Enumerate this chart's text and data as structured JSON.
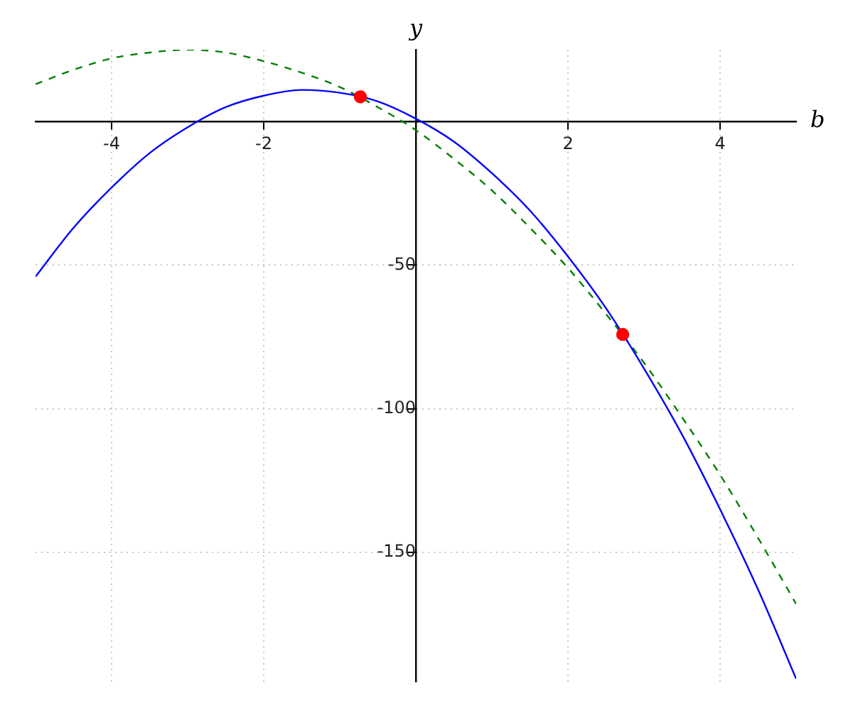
{
  "chart_data": {
    "type": "line",
    "xlabel": "b",
    "ylabel": "y",
    "xlim": [
      -5,
      5
    ],
    "ylim": [
      -195,
      25
    ],
    "xticks": [
      -4,
      -2,
      2,
      4
    ],
    "yticks": [
      -150,
      -100,
      -50
    ],
    "grid": true,
    "x": [
      -5,
      -4.5,
      -4,
      -3.5,
      -3,
      -2.5,
      -2,
      -1.5,
      -1,
      -0.5,
      0,
      0.5,
      1,
      1.5,
      2,
      2.5,
      3,
      3.5,
      4,
      4.5,
      5
    ],
    "series": [
      {
        "color": "#0000ff",
        "line_style": "solid",
        "marker": "none",
        "values": [
          -54,
          -37,
          -23,
          -11,
          -2,
          5,
          9,
          11,
          10,
          7,
          1,
          -7,
          -18,
          -31,
          -47,
          -65,
          -86,
          -109,
          -135,
          -163,
          -194
        ]
      },
      {
        "color": "#008000",
        "line_style": "dashed",
        "marker": "none",
        "values": [
          13,
          18,
          22,
          24,
          25,
          24,
          21,
          17,
          12,
          5,
          -3,
          -13,
          -24,
          -37,
          -51,
          -67,
          -84,
          -103,
          -123,
          -145,
          -168
        ]
      },
      {
        "type": "scatter",
        "color": "#ff0000",
        "marker": "circle",
        "x": [
          -0.73,
          2.72
        ],
        "values": [
          8.6,
          -74.1
        ]
      }
    ]
  }
}
